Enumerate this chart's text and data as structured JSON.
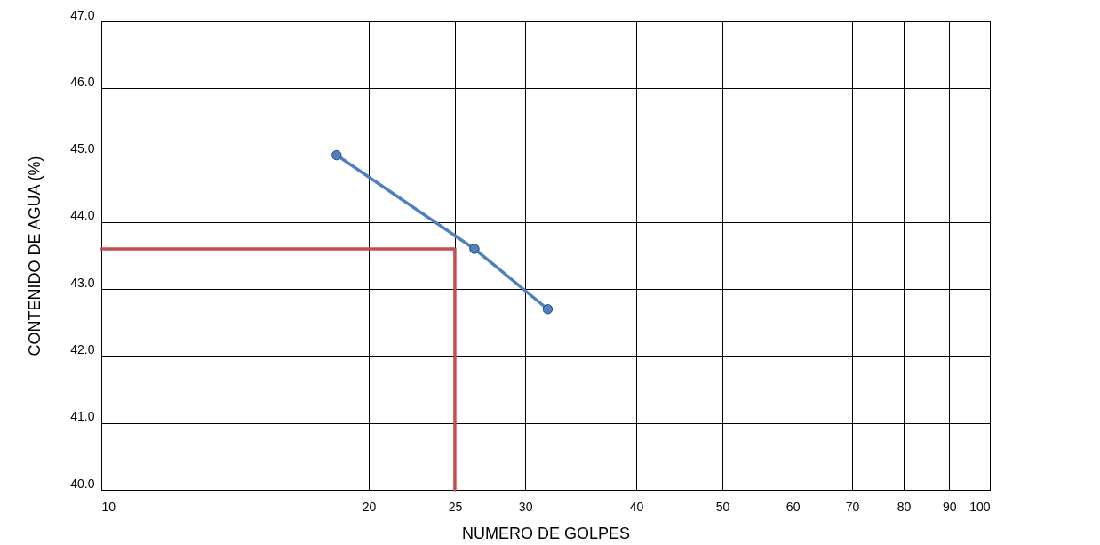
{
  "chart_data": {
    "type": "line",
    "xlabel": "NUMERO DE GOLPES",
    "ylabel": "CONTENIDO DE AGUA (%)",
    "log": "x",
    "xlim": [
      10,
      100
    ],
    "xticks": [
      10,
      20,
      25,
      30,
      40,
      50,
      60,
      70,
      80,
      90,
      100
    ],
    "ylim": [
      40,
      47
    ],
    "yticks": [
      {
        "value": 40,
        "label": "40.0"
      },
      {
        "value": 41,
        "label": "41.0"
      },
      {
        "value": 42,
        "label": "42.0"
      },
      {
        "value": 43,
        "label": "43.0"
      },
      {
        "value": 44,
        "label": "44.0"
      },
      {
        "value": 45,
        "label": "45.0"
      },
      {
        "value": 46,
        "label": "46.0"
      },
      {
        "value": 47,
        "label": "47.0"
      }
    ],
    "grid": true,
    "series": [
      {
        "color": "#4f81bd",
        "x": [
          18.4,
          26.3,
          31.8
        ],
        "values": [
          45.0,
          43.6,
          42.7
        ],
        "marker": "circle"
      },
      {
        "color": "#c0504d",
        "x": [
          10,
          25,
          25
        ],
        "values": [
          43.6,
          43.6,
          40
        ],
        "marker": "none"
      }
    ]
  }
}
